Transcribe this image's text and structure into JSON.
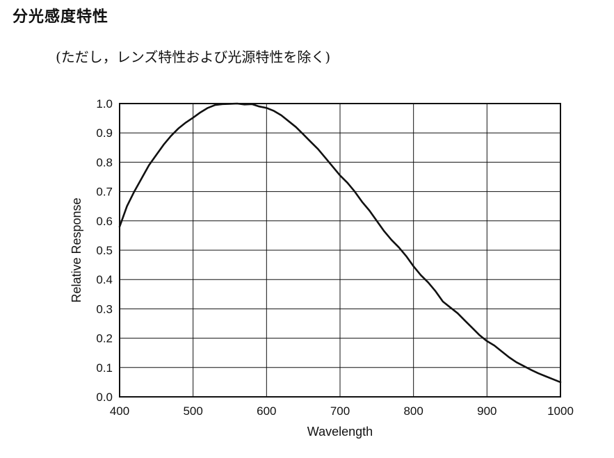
{
  "header": {
    "title": "分光感度特性",
    "note": "(ただし，レンズ特性および光源特性を除く)"
  },
  "chart_data": {
    "type": "line",
    "title": "",
    "xlabel": "Wavelength",
    "ylabel": "Relative Response",
    "xlim": [
      400,
      1000
    ],
    "ylim": [
      0.0,
      1.0
    ],
    "grid": true,
    "legend": "none",
    "line_color": "#111111",
    "x_ticks": [
      "400",
      "500",
      "600",
      "700",
      "800",
      "900",
      "1000"
    ],
    "y_ticks": [
      "0.0",
      "0.1",
      "0.2",
      "0.3",
      "0.4",
      "0.5",
      "0.6",
      "0.7",
      "0.8",
      "0.9",
      "1.0"
    ],
    "series": [
      {
        "x": [
          400,
          410,
          420,
          430,
          440,
          450,
          460,
          470,
          480,
          490,
          500,
          510,
          520,
          530,
          540,
          550,
          560,
          570,
          580,
          590,
          600,
          610,
          620,
          630,
          640,
          650,
          660,
          670,
          680,
          690,
          700,
          710,
          720,
          730,
          740,
          750,
          760,
          770,
          780,
          790,
          800,
          810,
          820,
          830,
          840,
          850,
          860,
          870,
          880,
          890,
          900,
          910,
          920,
          930,
          940,
          950,
          960,
          970,
          980,
          990,
          1000
        ],
        "values": [
          0.58,
          0.65,
          0.7,
          0.745,
          0.79,
          0.825,
          0.86,
          0.89,
          0.915,
          0.935,
          0.952,
          0.97,
          0.985,
          0.995,
          0.998,
          0.999,
          1.0,
          0.997,
          0.998,
          0.99,
          0.985,
          0.975,
          0.96,
          0.94,
          0.92,
          0.895,
          0.87,
          0.845,
          0.815,
          0.785,
          0.755,
          0.73,
          0.7,
          0.665,
          0.635,
          0.6,
          0.565,
          0.535,
          0.51,
          0.48,
          0.445,
          0.415,
          0.39,
          0.36,
          0.325,
          0.305,
          0.285,
          0.26,
          0.235,
          0.21,
          0.19,
          0.175,
          0.155,
          0.135,
          0.118,
          0.105,
          0.092,
          0.08,
          0.07,
          0.06,
          0.05
        ]
      }
    ]
  }
}
